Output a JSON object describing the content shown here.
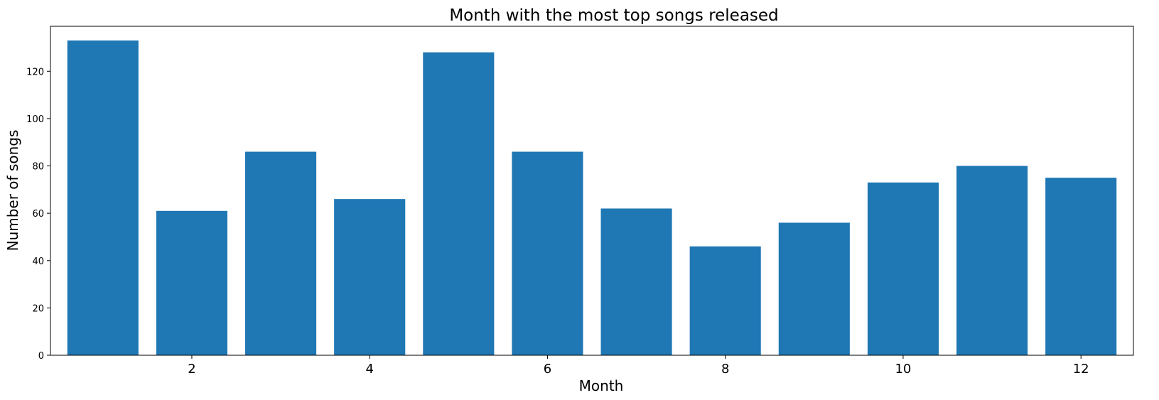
{
  "chart_data": {
    "type": "bar",
    "title": "Month with the most top songs released",
    "xlabel": "Month",
    "ylabel": "Number of songs",
    "x": [
      1,
      2,
      3,
      4,
      5,
      6,
      7,
      8,
      9,
      10,
      11,
      12
    ],
    "values": [
      133,
      61,
      86,
      66,
      128,
      86,
      62,
      46,
      56,
      73,
      80,
      75
    ],
    "xlim": [
      0.41,
      12.59
    ],
    "ylim": [
      0,
      139
    ],
    "xticks": [
      2,
      4,
      6,
      8,
      10,
      12
    ],
    "yticks": [
      0,
      20,
      40,
      60,
      80,
      100,
      120
    ],
    "bar_width": 0.8,
    "bar_color": "#1f77b4",
    "grid": false,
    "legend": false
  }
}
